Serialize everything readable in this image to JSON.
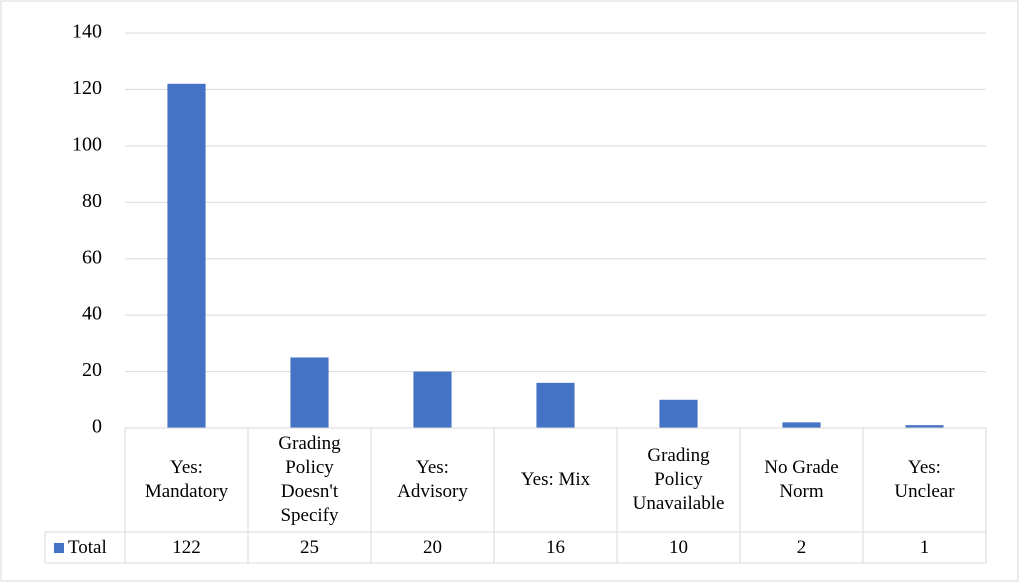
{
  "chart_data": {
    "type": "bar",
    "categories": [
      "Yes: Mandatory",
      "Grading Policy Doesn't Specify",
      "Yes: Advisory",
      "Yes: Mix",
      "Grading Policy Unavailable",
      "No Grade Norm",
      "Yes: Unclear"
    ],
    "series": [
      {
        "name": "Total",
        "color": "#4472c4",
        "values": [
          122,
          25,
          20,
          16,
          10,
          2,
          1
        ]
      }
    ],
    "ylim": [
      0,
      140
    ],
    "yticks": [
      0,
      20,
      40,
      60,
      80,
      100,
      120,
      140
    ],
    "grid": true,
    "data_table": true
  }
}
